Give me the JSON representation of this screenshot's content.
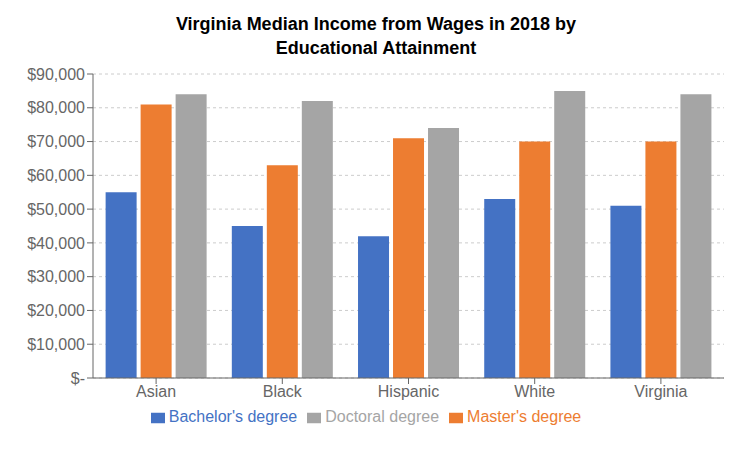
{
  "chart_data": {
    "type": "bar",
    "title": "Virginia Median Income from Wages in 2018 by\nEducational Attainment",
    "categories": [
      "Asian",
      "Black",
      "Hispanic",
      "White",
      "Virginia"
    ],
    "series": [
      {
        "name": "Bachelor's degree",
        "color": "#4472C4",
        "values": [
          55000,
          45000,
          42000,
          53000,
          51000
        ]
      },
      {
        "name": "Master's degree",
        "color": "#ED7D31",
        "values": [
          81000,
          63000,
          71000,
          70000,
          70000
        ]
      },
      {
        "name": "Doctoral degree",
        "color": "#A5A5A5",
        "values": [
          84000,
          82000,
          74000,
          85000,
          84000
        ]
      }
    ],
    "ylim": [
      0,
      90000
    ],
    "yticks": [
      {
        "value": 0,
        "label": "$-"
      },
      {
        "value": 10000,
        "label": "$10,000"
      },
      {
        "value": 20000,
        "label": "$20,000"
      },
      {
        "value": 30000,
        "label": "$30,000"
      },
      {
        "value": 40000,
        "label": "$40,000"
      },
      {
        "value": 50000,
        "label": "$50,000"
      },
      {
        "value": 60000,
        "label": "$60,000"
      },
      {
        "value": 70000,
        "label": "$70,000"
      },
      {
        "value": 80000,
        "label": "$80,000"
      },
      {
        "value": 90000,
        "label": "$90,000"
      }
    ],
    "grid": true,
    "legend": "bottom"
  }
}
